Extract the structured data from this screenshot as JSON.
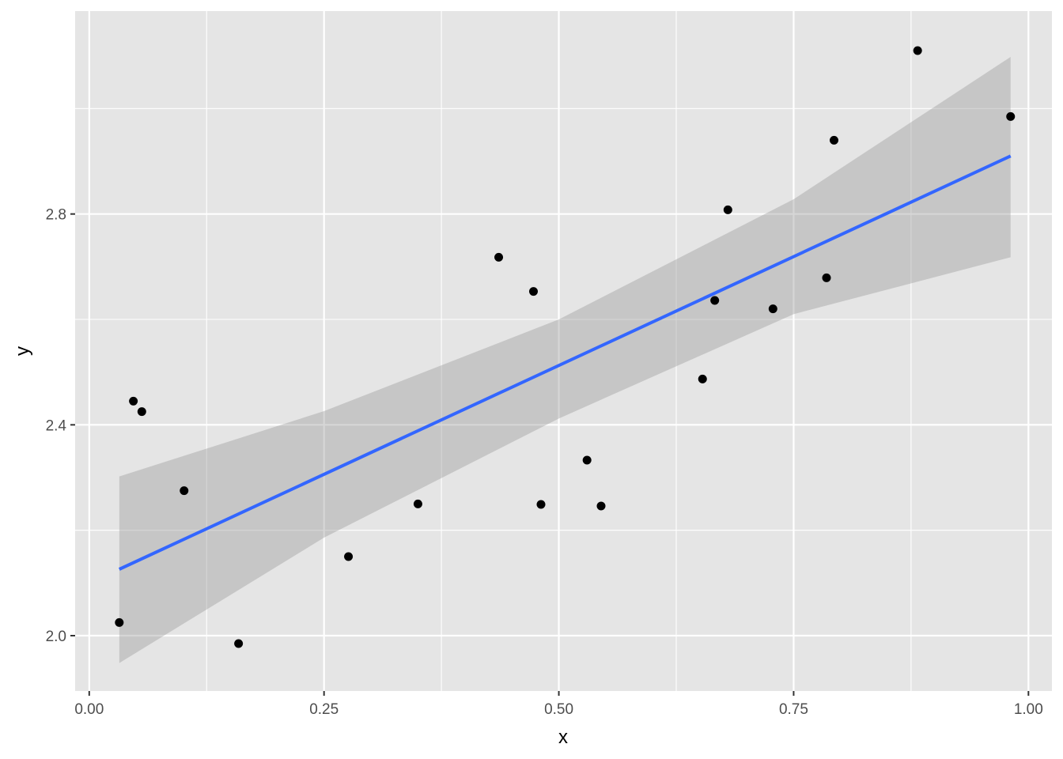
{
  "chart_data": {
    "type": "scatter",
    "title": "",
    "xlabel": "x",
    "ylabel": "y",
    "xlim": [
      -0.015,
      1.025
    ],
    "ylim": [
      1.895,
      3.185
    ],
    "xticks": [
      0.0,
      0.25,
      0.5,
      0.75,
      1.0
    ],
    "xtick_labels": [
      "0.00",
      "0.25",
      "0.50",
      "0.75",
      "1.00"
    ],
    "yticks": [
      2.0,
      2.4,
      2.8
    ],
    "ytick_labels": [
      "2.0",
      "2.4",
      "2.8"
    ],
    "x_minor_grid": [
      0.125,
      0.375,
      0.625,
      0.875
    ],
    "y_minor_grid": [
      2.2,
      2.6,
      3.0
    ],
    "grid": true,
    "legend": "none",
    "points": [
      {
        "x": 0.032,
        "y": 2.025
      },
      {
        "x": 0.047,
        "y": 2.445
      },
      {
        "x": 0.056,
        "y": 2.425
      },
      {
        "x": 0.101,
        "y": 2.275
      },
      {
        "x": 0.159,
        "y": 1.985
      },
      {
        "x": 0.276,
        "y": 2.15
      },
      {
        "x": 0.35,
        "y": 2.25
      },
      {
        "x": 0.436,
        "y": 2.718
      },
      {
        "x": 0.473,
        "y": 2.653
      },
      {
        "x": 0.481,
        "y": 2.249
      },
      {
        "x": 0.53,
        "y": 2.333
      },
      {
        "x": 0.545,
        "y": 2.246
      },
      {
        "x": 0.653,
        "y": 2.487
      },
      {
        "x": 0.666,
        "y": 2.636
      },
      {
        "x": 0.68,
        "y": 2.808
      },
      {
        "x": 0.728,
        "y": 2.62
      },
      {
        "x": 0.785,
        "y": 2.679
      },
      {
        "x": 0.793,
        "y": 2.94
      },
      {
        "x": 0.882,
        "y": 3.11
      },
      {
        "x": 0.981,
        "y": 2.985
      }
    ],
    "fit_line": {
      "x": [
        0.032,
        0.981
      ],
      "y": [
        2.126,
        2.91
      ],
      "color": "#3366FF"
    },
    "confidence_band": {
      "x": [
        0.032,
        0.25,
        0.5,
        0.75,
        0.981
      ],
      "lower": [
        1.948,
        2.186,
        2.412,
        2.61,
        2.718
      ],
      "upper": [
        2.302,
        2.426,
        2.6,
        2.828,
        3.098
      ],
      "color": "#999999"
    },
    "colors": {
      "panel_background": "#E5E5E5",
      "grid": "#FFFFFF",
      "point": "#000000",
      "line": "#3366FF",
      "band": "#999999"
    }
  }
}
